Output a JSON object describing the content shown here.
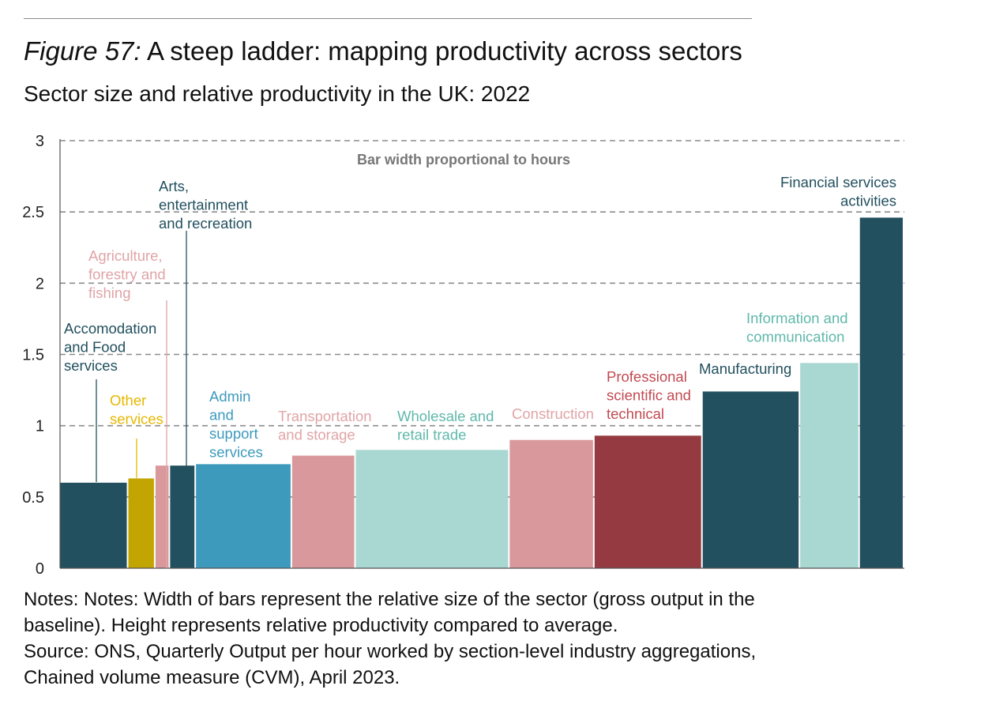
{
  "header": {
    "figure_label": "Figure 57:",
    "title": "A steep ladder: mapping productivity across sectors",
    "subtitle": "Sector size and relative productivity in the UK: 2022"
  },
  "notes": {
    "line1": "Notes: Notes: Width of bars represent the relative size of the sector (gross output in the",
    "line2": "baseline). Height represents relative productivity compared to average.",
    "line3": "Source: ONS, Quarterly Output per hour worked by section-level industry aggregations,",
    "line4": "Chained volume measure (CVM), April 2023."
  },
  "chart_data": {
    "type": "bar",
    "subtype": "variable-width (marimekko)",
    "annotation": "Bar width proportional to hours",
    "ylim": [
      0,
      3
    ],
    "y_ticks": [
      0,
      0.5,
      1,
      1.5,
      2,
      2.5,
      3
    ],
    "y_tick_labels": [
      "0",
      "0.5",
      "1",
      "1.5",
      "2",
      "2.5",
      "3"
    ],
    "grid": "dashed horizontal",
    "series": [
      {
        "name": "Accomodation and Food services",
        "label_lines": [
          "Accomodation",
          "and Food",
          "services"
        ],
        "value": 0.6,
        "width_share": 5.15,
        "color": "#22505f",
        "label_color": "#22505f"
      },
      {
        "name": "Other services",
        "label_lines": [
          "Other",
          "services"
        ],
        "value": 0.63,
        "width_share": 2.05,
        "color": "#c3a502",
        "label_color": "#e6b800"
      },
      {
        "name": "Agriculture, forestry and fishing",
        "label_lines": [
          "Agriculture,",
          "forestry and",
          "fishing"
        ],
        "value": 0.72,
        "width_share": 1.1,
        "color": "#d9989b",
        "label_color": "#e0a4a7"
      },
      {
        "name": "Arts, entertainment and recreation",
        "label_lines": [
          "Arts,",
          "entertainment",
          "and recreation"
        ],
        "value": 0.72,
        "width_share": 1.95,
        "color": "#22505f",
        "label_color": "#22505f"
      },
      {
        "name": "Admin and support services",
        "label_lines": [
          "Admin",
          "and",
          "support",
          "services"
        ],
        "value": 0.73,
        "width_share": 7.25,
        "color": "#3d9abd",
        "label_color": "#3d9abd"
      },
      {
        "name": "Transportation and storage",
        "label_lines": [
          "Transportation",
          "and storage"
        ],
        "value": 0.79,
        "width_share": 4.8,
        "color": "#d9989b",
        "label_color": "#e0a4a7"
      },
      {
        "name": "Wholesale and retail trade",
        "label_lines": [
          "Wholesale and",
          "retail trade"
        ],
        "value": 0.83,
        "width_share": 11.6,
        "color": "#a9d7d1",
        "label_color": "#5fb8ab"
      },
      {
        "name": "Construction",
        "label_lines": [
          "Construction"
        ],
        "value": 0.9,
        "width_share": 6.4,
        "color": "#d9989b",
        "label_color": "#e0a4a7"
      },
      {
        "name": "Professional scientific and technical",
        "label_lines": [
          "Professional",
          "scientific and",
          "technical"
        ],
        "value": 0.93,
        "width_share": 8.15,
        "color": "#943a40",
        "label_color": "#c24a52"
      },
      {
        "name": "Manufacturing",
        "label_lines": [
          "Manufacturing"
        ],
        "value": 1.24,
        "width_share": 7.35,
        "color": "#22505f",
        "label_color": "#22505f"
      },
      {
        "name": "Information and communication",
        "label_lines": [
          "Information and",
          "communication"
        ],
        "value": 1.44,
        "width_share": 4.5,
        "color": "#a9d7d1",
        "label_color": "#5fb8ab"
      },
      {
        "name": "Financial services activities",
        "label_lines": [
          "Financial services",
          "activities"
        ],
        "value": 2.46,
        "width_share": 3.35,
        "color": "#22505f",
        "label_color": "#22505f"
      }
    ]
  }
}
